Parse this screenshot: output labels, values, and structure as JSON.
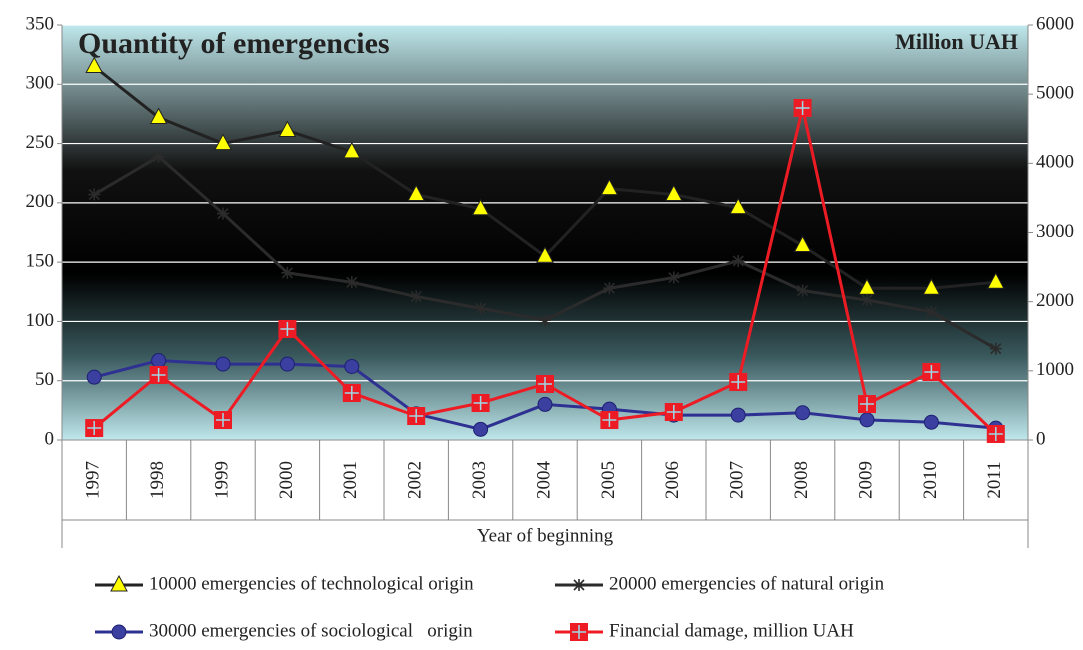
{
  "chart_data": {
    "type": "line",
    "title": "Quantity of emergencies",
    "annotation": "Million UAH",
    "x_label": "Year of beginning",
    "categories": [
      "1997",
      "1998",
      "1999",
      "2000",
      "2001",
      "2002",
      "2003",
      "2004",
      "2005",
      "2006",
      "2007",
      "2008",
      "2009",
      "2010",
      "2011"
    ],
    "ylim": [
      0,
      350
    ],
    "yticks": [
      0,
      50,
      100,
      150,
      200,
      250,
      300,
      350
    ],
    "y2lim": [
      0,
      6000
    ],
    "y2ticks": [
      0,
      1000,
      2000,
      3000,
      4000,
      5000,
      6000
    ],
    "grid": true,
    "series": [
      {
        "name": "10000 emergencies of technological origin",
        "color": "#222222",
        "marker": "triangle",
        "values": [
          315,
          272,
          250,
          261,
          243,
          207,
          195,
          155,
          212,
          207,
          196,
          164,
          128,
          128,
          133
        ]
      },
      {
        "name": "20000 emergencies of natural origin",
        "color": "#2b2b2b",
        "marker": "star",
        "values": [
          207,
          239,
          191,
          141,
          133,
          121,
          111,
          101,
          128,
          137,
          151,
          126,
          118,
          108,
          77
        ]
      },
      {
        "name": "30000 emergencies of sociological   origin",
        "color": "#2e3192",
        "marker": "circle",
        "values": [
          53,
          67,
          64,
          64,
          62,
          22,
          9,
          30,
          26,
          21,
          21,
          23,
          17,
          15,
          10
        ]
      },
      {
        "name": "Financial damage, million UAH",
        "color": "#ed1c24",
        "marker": "square",
        "axis": "y2",
        "values": [
          173,
          940,
          289,
          1605,
          680,
          347,
          535,
          810,
          289,
          405,
          839,
          4800,
          520,
          983,
          87
        ]
      }
    ]
  }
}
